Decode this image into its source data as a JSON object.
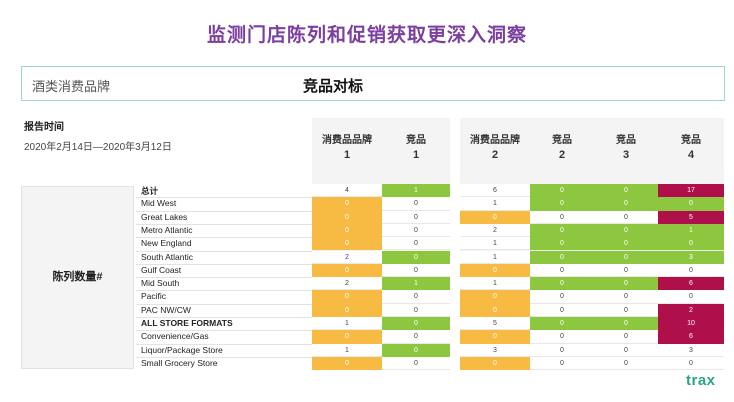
{
  "title": "监测门店陈列和促销获取更深入洞察",
  "category": "酒类消费品牌",
  "benchmark": "竞品对标",
  "report_label": "报告时间",
  "report_date": "2020年2月14日—2020年3月12日",
  "metric_label": "陈列数量#",
  "logo": "trax",
  "colors": {
    "orange": "#f7bb43",
    "green": "#8dc63f",
    "magenta": "#b0104a",
    "white": "#ffffff",
    "accent": "#7b3fa0",
    "brand": "#2aa486"
  },
  "columns": [
    {
      "name": "消费品品牌",
      "num": "1"
    },
    {
      "name": "竞品",
      "num": "1"
    },
    {
      "name": "消费品品牌",
      "num": "2"
    },
    {
      "name": "竞品",
      "num": "2"
    },
    {
      "name": "竞品",
      "num": "3"
    },
    {
      "name": "竞品",
      "num": "4"
    }
  ],
  "chart_data": {
    "type": "table",
    "title": "陈列数量#",
    "rows": [
      "总计",
      "Mid West",
      "Great Lakes",
      "Metro Atlantic",
      "New England",
      "South Atlantic",
      "Gulf Coast",
      "Mid South",
      "Pacific",
      "PAC NW/CW",
      "ALL STORE FORMATS",
      "Convenience/Gas",
      "Liquor/Package Store",
      "Small Grocery Store"
    ],
    "bold_rows": [
      0,
      10
    ],
    "series": [
      {
        "name": "消费品品牌 1",
        "values": [
          4,
          0,
          0,
          0,
          0,
          2,
          0,
          2,
          0,
          0,
          1,
          0,
          1,
          0
        ],
        "colors": [
          "w",
          "o",
          "o",
          "o",
          "o",
          "w",
          "o",
          "w",
          "o",
          "o",
          "w",
          "o",
          "w",
          "o"
        ]
      },
      {
        "name": "竞品 1",
        "values": [
          1,
          0,
          0,
          0,
          0,
          0,
          0,
          1,
          0,
          0,
          0,
          0,
          0,
          0
        ],
        "colors": [
          "g",
          "w",
          "w",
          "w",
          "w",
          "g",
          "w",
          "g",
          "w",
          "w",
          "g",
          "w",
          "g",
          "w"
        ]
      },
      {
        "name": "消费品品牌 2",
        "values": [
          6,
          1,
          0,
          2,
          1,
          1,
          0,
          1,
          0,
          0,
          5,
          0,
          3,
          0
        ],
        "colors": [
          "w",
          "w",
          "o",
          "w",
          "w",
          "w",
          "o",
          "w",
          "o",
          "o",
          "w",
          "o",
          "w",
          "o"
        ]
      },
      {
        "name": "竞品 2",
        "values": [
          0,
          0,
          0,
          0,
          0,
          0,
          0,
          0,
          0,
          0,
          0,
          0,
          0,
          0
        ],
        "colors": [
          "g",
          "g",
          "w",
          "g",
          "g",
          "g",
          "w",
          "g",
          "w",
          "w",
          "g",
          "w",
          "w",
          "w"
        ]
      },
      {
        "name": "竞品 3",
        "values": [
          0,
          0,
          0,
          0,
          0,
          0,
          0,
          0,
          0,
          0,
          0,
          0,
          0,
          0
        ],
        "colors": [
          "g",
          "g",
          "w",
          "g",
          "g",
          "g",
          "w",
          "g",
          "w",
          "w",
          "g",
          "w",
          "w",
          "w"
        ]
      },
      {
        "name": "竞品 4",
        "values": [
          17,
          0,
          5,
          1,
          0,
          3,
          0,
          6,
          0,
          2,
          10,
          6,
          3,
          0
        ],
        "colors": [
          "m",
          "g",
          "m",
          "g",
          "g",
          "g",
          "w",
          "m",
          "w",
          "m",
          "m",
          "m",
          "w",
          "w"
        ]
      }
    ]
  }
}
